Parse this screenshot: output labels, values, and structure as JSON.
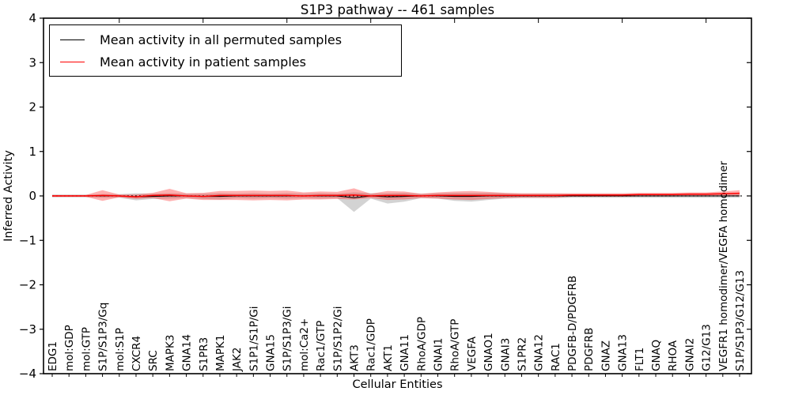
{
  "chart_data": {
    "type": "line",
    "title": "S1P3 pathway -- 461 samples",
    "xlabel": "Cellular Entities",
    "ylabel": "Inferred Activity",
    "ylim": [
      -4,
      4
    ],
    "yticks": [
      "4",
      "3",
      "2",
      "1",
      "0",
      "−1",
      "−2",
      "−3",
      "−4"
    ],
    "grid": false,
    "legend_position": "upper left",
    "zero_line": {
      "y": 0,
      "style": "dotted",
      "color": "#000000"
    },
    "categories": [
      "EDG1",
      "mol:GDP",
      "mol:GTP",
      "S1P/S1P3/Gq",
      "mol:S1P",
      "CXCR4",
      "SRC",
      "MAPK3",
      "GNA14",
      "S1PR3",
      "MAPK1",
      "JAK2",
      "S1P1/S1P/Gi",
      "GNA15",
      "S1P/S1P3/Gi",
      "mol:Ca2+",
      "Rac1/GTP",
      "S1P/S1P2/Gi",
      "AKT3",
      "Rac1/GDP",
      "AKT1",
      "GNA11",
      "RhoA/GDP",
      "GNAI1",
      "RhoA/GTP",
      "VEGFA",
      "GNAO1",
      "GNAI3",
      "S1PR2",
      "GNA12",
      "RAC1",
      "PDGFB-D/PDGFRB",
      "PDGFRB",
      "GNAZ",
      "GNA13",
      "FLT1",
      "GNAQ",
      "RHOA",
      "GNAI2",
      "G12/G13",
      "VEGFR1 homodimer/VEGFA homodimer",
      "S1P/S1P3/G12/G13"
    ],
    "series": [
      {
        "name": "Mean activity in all permuted samples",
        "color": "#000000",
        "line_style": "solid",
        "band_color": "rgba(110,110,110,0.30)",
        "values": [
          0,
          0,
          0,
          0,
          0,
          -0.02,
          -0.01,
          0,
          0,
          -0.01,
          -0.01,
          0,
          0,
          0,
          0,
          0,
          0,
          0,
          -0.04,
          0,
          -0.02,
          -0.01,
          0,
          0,
          -0.01,
          -0.01,
          0,
          0,
          0,
          0,
          0,
          0,
          0,
          0,
          0,
          0,
          0,
          0,
          0,
          0,
          0,
          0
        ],
        "band_upper": [
          0.03,
          0.03,
          0.03,
          0.04,
          0.04,
          0.08,
          0.06,
          0.06,
          0.05,
          0.06,
          0.07,
          0.05,
          0.06,
          0.05,
          0.06,
          0.05,
          0.06,
          0.05,
          0.12,
          0.06,
          0.08,
          0.08,
          0.05,
          0.06,
          0.08,
          0.08,
          0.07,
          0.06,
          0.05,
          0.05,
          0.05,
          0.04,
          0.04,
          0.04,
          0.04,
          0.04,
          0.04,
          0.04,
          0.04,
          0.04,
          0.04,
          0.04
        ],
        "band_lower": [
          0.03,
          0.03,
          0.03,
          0.04,
          0.04,
          0.08,
          0.06,
          0.06,
          0.05,
          0.06,
          0.07,
          0.05,
          0.06,
          0.05,
          0.06,
          0.05,
          0.06,
          0.05,
          0.32,
          0.06,
          0.15,
          0.12,
          0.05,
          0.06,
          0.1,
          0.12,
          0.09,
          0.06,
          0.05,
          0.05,
          0.05,
          0.04,
          0.04,
          0.04,
          0.04,
          0.04,
          0.04,
          0.04,
          0.04,
          0.04,
          0.04,
          0.04
        ]
      },
      {
        "name": "Mean activity in patient samples",
        "color": "#ff0000",
        "line_style": "solid",
        "band_color": "rgba(255,30,30,0.35)",
        "values": [
          0,
          0,
          0,
          0.01,
          0,
          -0.02,
          0.01,
          0.02,
          0,
          -0.01,
          0.01,
          0.01,
          0.01,
          0.01,
          0.01,
          0,
          0.01,
          0.01,
          0.02,
          0,
          0.01,
          0.01,
          0,
          0.01,
          0.01,
          0.01,
          0.01,
          0.01,
          0.01,
          0.01,
          0.01,
          0.02,
          0.02,
          0.02,
          0.02,
          0.03,
          0.03,
          0.03,
          0.04,
          0.04,
          0.05,
          0.06
        ],
        "band_upper": [
          0.02,
          0.02,
          0.02,
          0.12,
          0.03,
          0.05,
          0.06,
          0.14,
          0.06,
          0.08,
          0.1,
          0.1,
          0.11,
          0.1,
          0.11,
          0.08,
          0.09,
          0.08,
          0.15,
          0.05,
          0.1,
          0.09,
          0.05,
          0.07,
          0.09,
          0.1,
          0.08,
          0.06,
          0.05,
          0.05,
          0.05,
          0.04,
          0.04,
          0.04,
          0.04,
          0.04,
          0.04,
          0.04,
          0.04,
          0.04,
          0.05,
          0.07
        ],
        "band_lower": [
          0.02,
          0.02,
          0.02,
          0.12,
          0.03,
          0.05,
          0.06,
          0.14,
          0.06,
          0.08,
          0.1,
          0.1,
          0.11,
          0.1,
          0.11,
          0.08,
          0.09,
          0.08,
          0.1,
          0.05,
          0.1,
          0.09,
          0.05,
          0.07,
          0.09,
          0.1,
          0.08,
          0.06,
          0.05,
          0.05,
          0.05,
          0.04,
          0.04,
          0.04,
          0.04,
          0.04,
          0.04,
          0.04,
          0.04,
          0.04,
          0.05,
          0.07
        ]
      }
    ]
  }
}
